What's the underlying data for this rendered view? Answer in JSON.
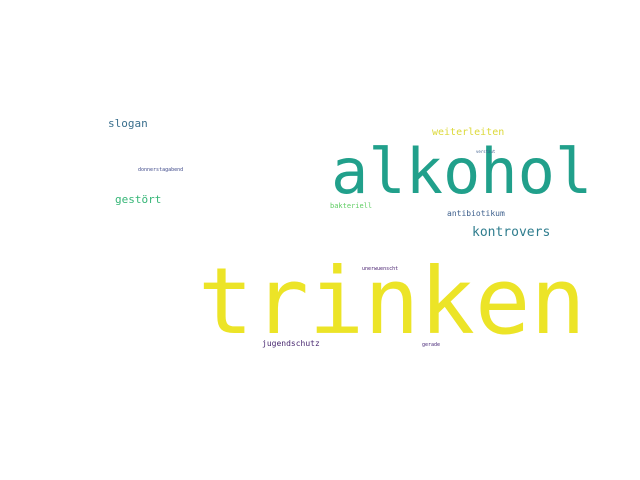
{
  "words": [
    {
      "id": "trinken",
      "text": "trinken",
      "color": "#ece427"
    },
    {
      "id": "alkohol",
      "text": "alkohol",
      "color": "#21a08b"
    },
    {
      "id": "kontrovers",
      "text": "kontrovers",
      "color": "#2f7d8e"
    },
    {
      "id": "slogan",
      "text": "slogan",
      "color": "#3a6f8d"
    },
    {
      "id": "weiterleiten",
      "text": "weiterleiten",
      "color": "#dcd93a"
    },
    {
      "id": "gestort",
      "text": "gestört",
      "color": "#36b677"
    },
    {
      "id": "antibiotikum",
      "text": "antibiotikum",
      "color": "#3d5f8c"
    },
    {
      "id": "bakteriell",
      "text": "bakteriell",
      "color": "#5fcd63"
    },
    {
      "id": "jugendschutz",
      "text": "jugendschutz",
      "color": "#4a2a72"
    },
    {
      "id": "donnerstag",
      "text": "donnerstagabend",
      "color": "#3f4a8a"
    },
    {
      "id": "verstaut",
      "text": "verstaut",
      "color": "#3b5c8b"
    },
    {
      "id": "unerwuenscht",
      "text": "unerwuenscht",
      "color": "#48206f"
    },
    {
      "id": "gerade",
      "text": "gerade",
      "color": "#482878"
    }
  ]
}
